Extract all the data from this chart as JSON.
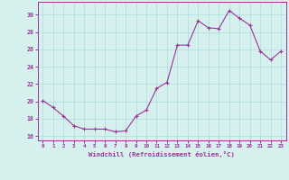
{
  "x": [
    0,
    1,
    2,
    3,
    4,
    5,
    6,
    7,
    8,
    9,
    10,
    11,
    12,
    13,
    14,
    15,
    16,
    17,
    18,
    19,
    20,
    21,
    22,
    23
  ],
  "y": [
    20.1,
    19.3,
    18.3,
    17.2,
    16.8,
    16.8,
    16.8,
    16.5,
    16.6,
    18.3,
    19.0,
    21.5,
    22.2,
    26.5,
    26.5,
    29.3,
    28.5,
    28.4,
    30.5,
    29.6,
    28.8,
    25.8,
    24.8,
    25.8
  ],
  "line_color": "#993399",
  "marker_color": "#993399",
  "bg_color": "#d5f0ed",
  "grid_color": "#aadddd",
  "axis_color": "#993399",
  "xlabel": "Windchill (Refroidissement éolien,°C)",
  "ylim": [
    15.5,
    31.5
  ],
  "yticks": [
    16,
    18,
    20,
    22,
    24,
    26,
    28,
    30
  ],
  "xlim": [
    -0.5,
    23.5
  ],
  "xticks": [
    0,
    1,
    2,
    3,
    4,
    5,
    6,
    7,
    8,
    9,
    10,
    11,
    12,
    13,
    14,
    15,
    16,
    17,
    18,
    19,
    20,
    21,
    22,
    23
  ]
}
